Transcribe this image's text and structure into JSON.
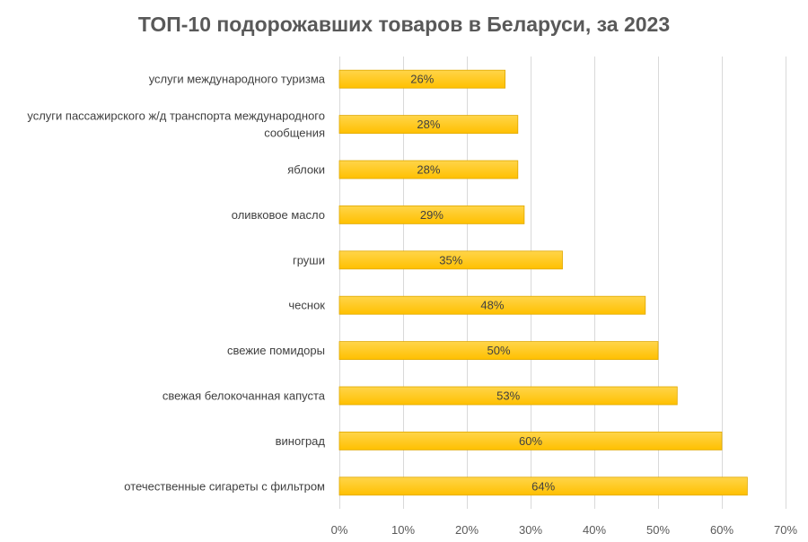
{
  "chart_data": {
    "type": "bar",
    "orientation": "horizontal",
    "title": "ТОП-10 подорожавших товаров в Беларуси, за 2023",
    "categories": [
      [
        "услуги международного туризма"
      ],
      [
        "услуги пассажирского ж/д транспорта международного",
        "сообщения"
      ],
      [
        "яблоки"
      ],
      [
        "оливковое масло"
      ],
      [
        "груши"
      ],
      [
        "чеснок"
      ],
      [
        "свежие помидоры"
      ],
      [
        "свежая белокочанная капуста"
      ],
      [
        "виноград"
      ],
      [
        "отечественные сигареты с фильтром"
      ]
    ],
    "values": [
      26,
      28,
      28,
      29,
      35,
      48,
      50,
      53,
      60,
      64
    ],
    "data_labels": [
      "26%",
      "28%",
      "28%",
      "29%",
      "35%",
      "48%",
      "50%",
      "53%",
      "60%",
      "64%"
    ],
    "xlim": [
      0,
      70
    ],
    "x_ticks": [
      0,
      10,
      20,
      30,
      40,
      50,
      60,
      70
    ],
    "x_tick_labels": [
      "0%",
      "10%",
      "20%",
      "30%",
      "40%",
      "50%",
      "60%",
      "70%"
    ],
    "grid": "vertical",
    "legend": "none",
    "colors": {
      "bar_fill_top": "#ffd54a",
      "bar_fill_bottom": "#ffc000",
      "bar_stroke": "#e0a800",
      "title": "#595959",
      "text": "#404040",
      "grid": "#d9d9d9"
    }
  }
}
